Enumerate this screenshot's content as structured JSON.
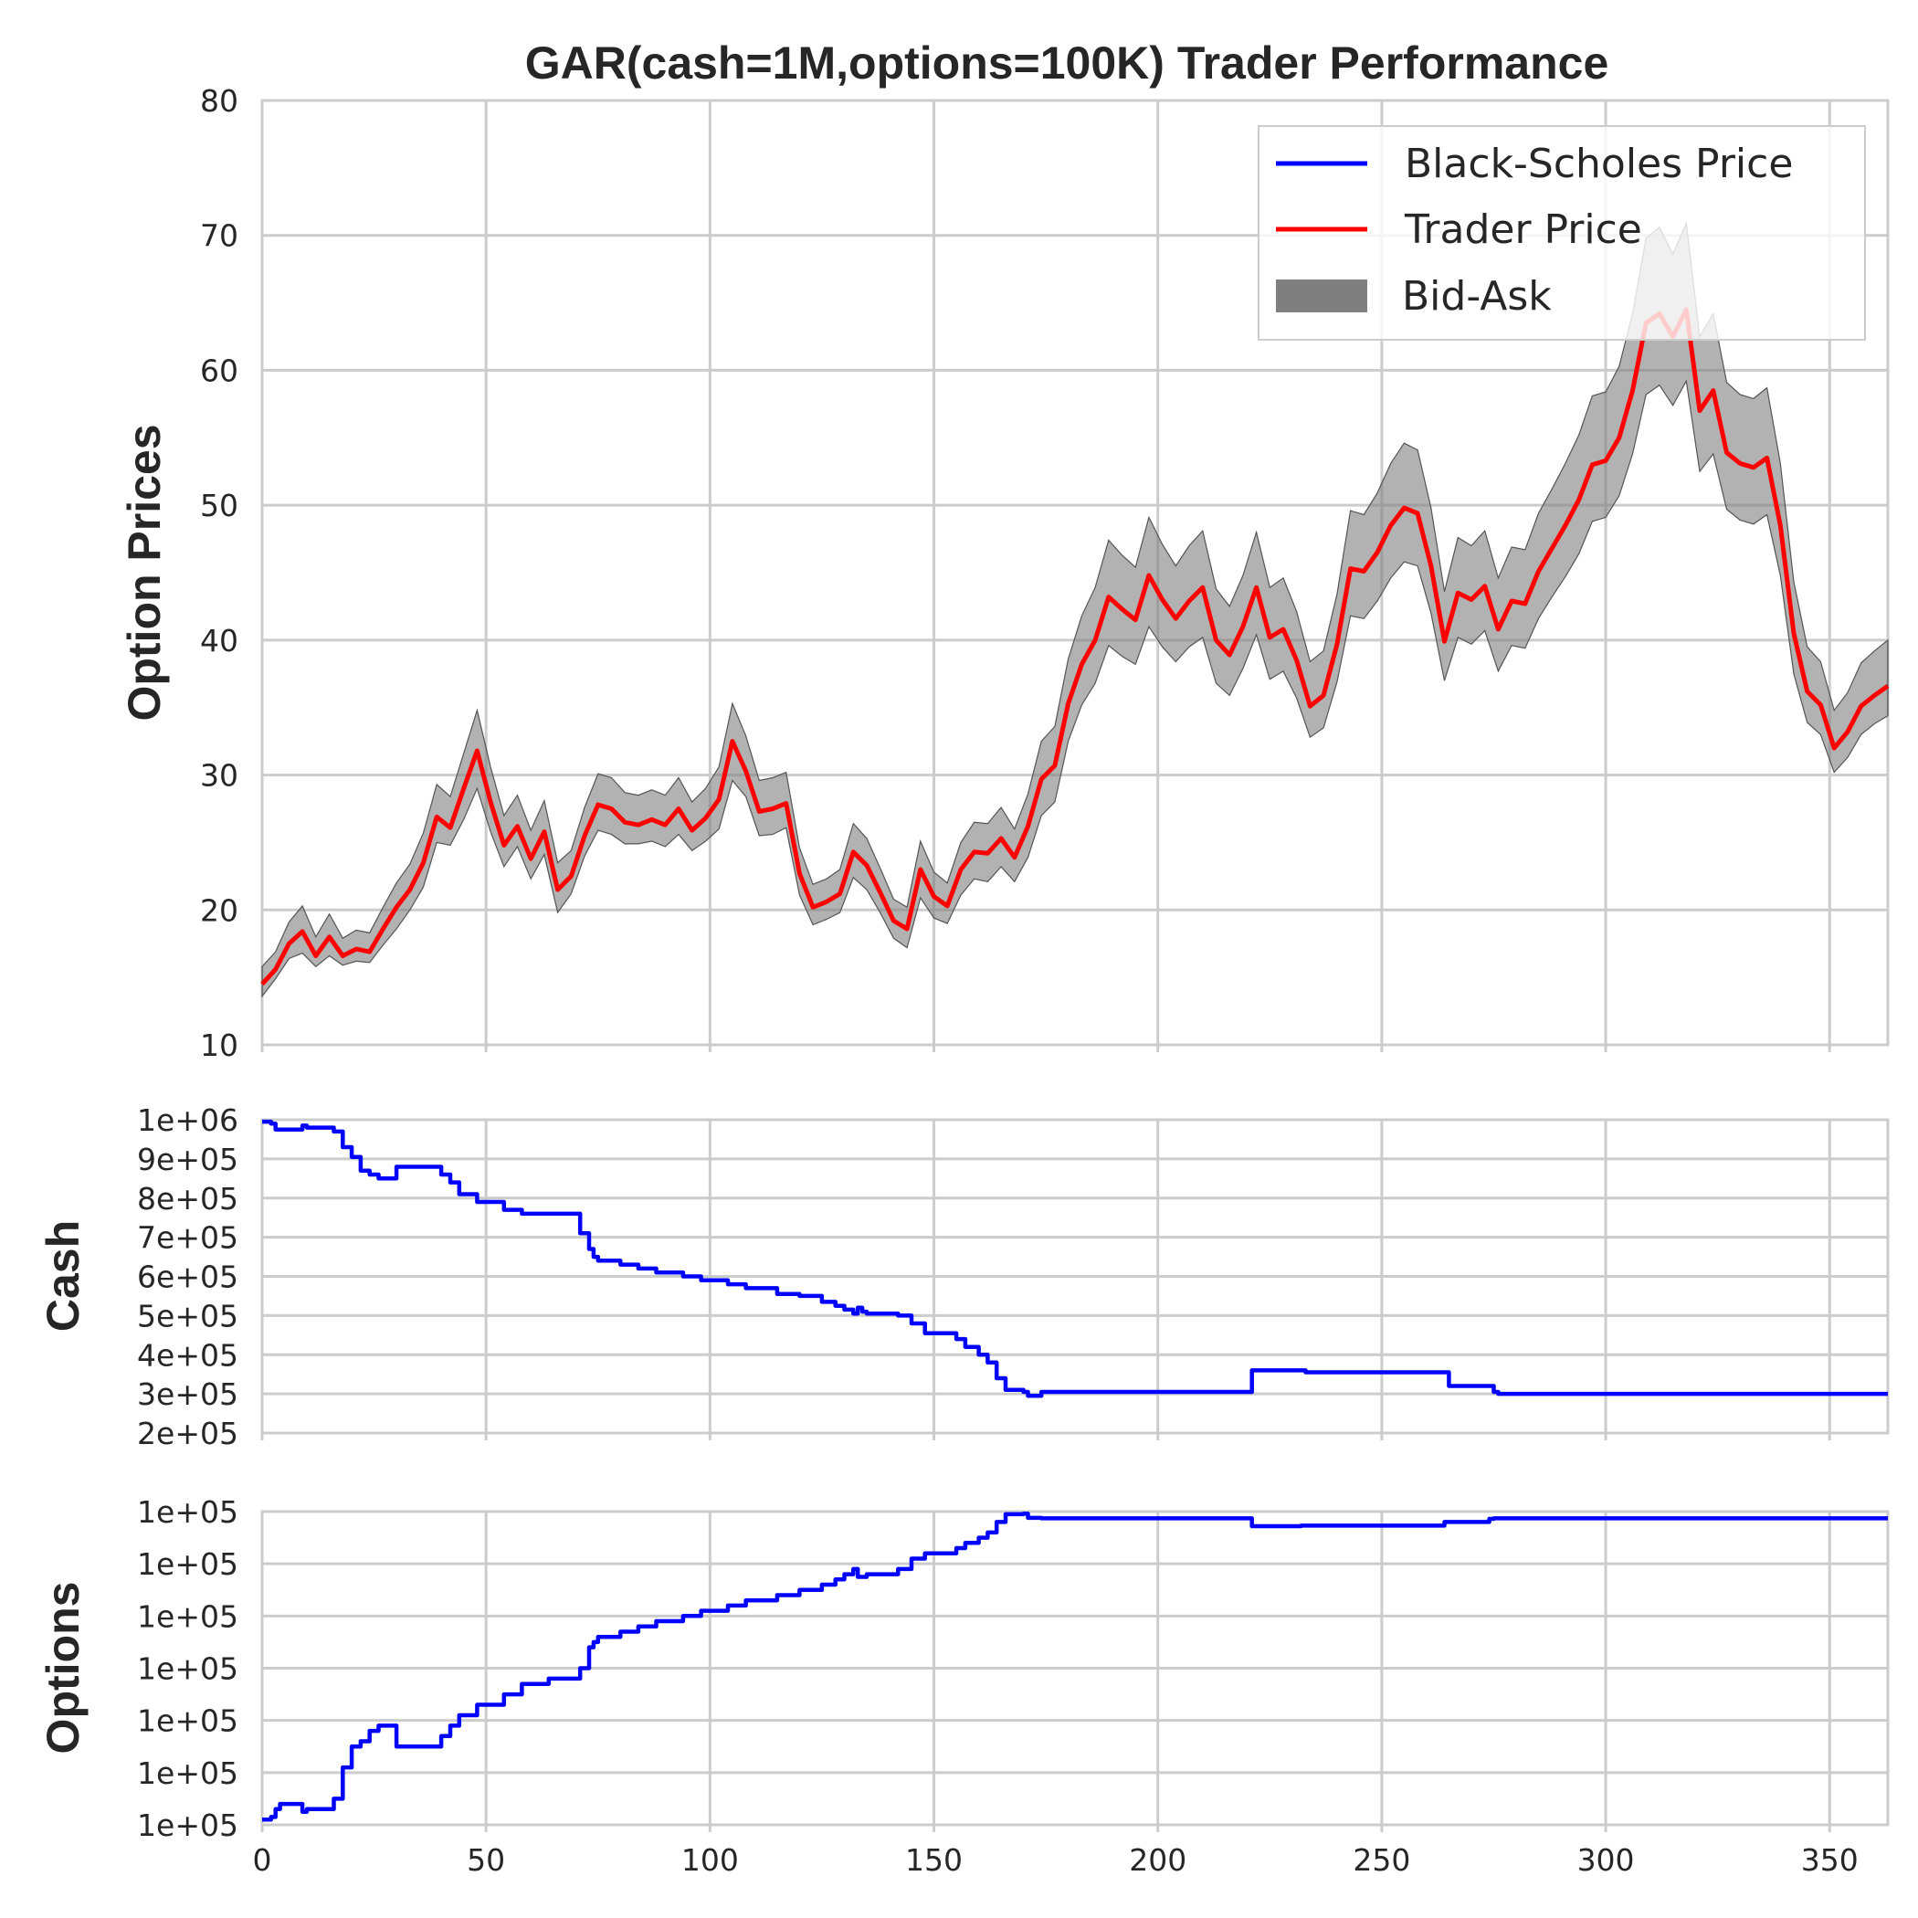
{
  "title": "GAR(cash=1M,options=100K) Trader Performance",
  "colors": {
    "black_scholes": "#0000ff",
    "trader": "#ff0000",
    "bid_ask_band": "#7f7f7f",
    "cash_line": "#0000ff",
    "options_line": "#0000ff",
    "grid": "#cccccc",
    "spine": "#cccccc"
  },
  "legend": {
    "placement": "top-right",
    "entries": [
      "Black-Scholes Price",
      "Trader Price",
      "Bid-Ask"
    ]
  },
  "chart_data": [
    {
      "type": "line",
      "panel": "option-prices",
      "ylabel": "Option Prices",
      "xlim": [
        0,
        363
      ],
      "ylim": [
        10,
        80
      ],
      "grid": true,
      "yticks": [
        "10",
        "20",
        "30",
        "40",
        "50",
        "60",
        "70",
        "80"
      ],
      "x": [
        0,
        3,
        6,
        9,
        12,
        15,
        18,
        21,
        24,
        27,
        30,
        33,
        36,
        39,
        42,
        45,
        48,
        51,
        54,
        57,
        60,
        63,
        66,
        69,
        72,
        75,
        78,
        81,
        84,
        87,
        90,
        93,
        96,
        99,
        102,
        105,
        108,
        111,
        114,
        117,
        120,
        123,
        126,
        129,
        132,
        135,
        138,
        141,
        144,
        147,
        150,
        153,
        156,
        159,
        162,
        165,
        168,
        171,
        174,
        177,
        180,
        183,
        186,
        189,
        192,
        195,
        198,
        201,
        204,
        207,
        210,
        213,
        216,
        219,
        222,
        225,
        228,
        231,
        234,
        237,
        240,
        243,
        246,
        249,
        252,
        255,
        258,
        261,
        264,
        267,
        270,
        273,
        276,
        279,
        282,
        285,
        288,
        291,
        294,
        297,
        300,
        303,
        306,
        309,
        312,
        315,
        318,
        321,
        324,
        327,
        330,
        333,
        336,
        339,
        342,
        345,
        348,
        351,
        354,
        357,
        360,
        363
      ],
      "series": [
        {
          "name": "Black-Scholes Price",
          "values": [
            14.5,
            15.6,
            17.5,
            18.4,
            16.6,
            18.0,
            16.6,
            17.1,
            16.9,
            18.6,
            20.2,
            21.5,
            23.5,
            26.9,
            26.1,
            29.0,
            31.8,
            28.0,
            24.8,
            26.2,
            23.8,
            25.8,
            21.5,
            22.5,
            25.5,
            27.8,
            27.5,
            26.5,
            26.3,
            26.7,
            26.3,
            27.5,
            25.9,
            26.8,
            28.2,
            32.5,
            30.3,
            27.3,
            27.5,
            27.9,
            22.7,
            20.2,
            20.6,
            21.2,
            24.3,
            23.3,
            21.3,
            19.2,
            18.6,
            23.0,
            21.0,
            20.3,
            23.0,
            24.3,
            24.2,
            25.3,
            23.9,
            26.2,
            29.7,
            30.7,
            35.3,
            38.2,
            40.0,
            43.2,
            42.3,
            41.5,
            44.8,
            43.0,
            41.6,
            42.9,
            43.9,
            40.0,
            38.9,
            41.0,
            43.9,
            40.2,
            40.8,
            38.5,
            35.1,
            35.9,
            39.7,
            45.3,
            45.1,
            46.5,
            48.5,
            49.8,
            49.4,
            45.5,
            39.9,
            43.5,
            43.0,
            44.0,
            40.8,
            42.9,
            42.7,
            45.1,
            46.8,
            48.5,
            50.4,
            53.0,
            53.3,
            55.0,
            58.5,
            63.5,
            64.2,
            62.5,
            64.5,
            57.0,
            58.5,
            53.9,
            53.1,
            52.8,
            53.5,
            48.5,
            40.5,
            36.2,
            35.2,
            32.0,
            33.2,
            35.1,
            35.9,
            36.6
          ],
          "stroke_visible": false
        },
        {
          "name": "Trader Price",
          "values": [
            14.5,
            15.6,
            17.5,
            18.4,
            16.6,
            18.0,
            16.6,
            17.1,
            16.9,
            18.6,
            20.2,
            21.5,
            23.5,
            26.9,
            26.1,
            29.0,
            31.8,
            28.0,
            24.8,
            26.2,
            23.8,
            25.8,
            21.5,
            22.5,
            25.5,
            27.8,
            27.5,
            26.5,
            26.3,
            26.7,
            26.3,
            27.5,
            25.9,
            26.8,
            28.2,
            32.5,
            30.3,
            27.3,
            27.5,
            27.9,
            22.7,
            20.2,
            20.6,
            21.2,
            24.3,
            23.3,
            21.3,
            19.2,
            18.6,
            23.0,
            21.0,
            20.3,
            23.0,
            24.3,
            24.2,
            25.3,
            23.9,
            26.2,
            29.7,
            30.7,
            35.3,
            38.2,
            40.0,
            43.2,
            42.3,
            41.5,
            44.8,
            43.0,
            41.6,
            42.9,
            43.9,
            40.0,
            38.9,
            41.0,
            43.9,
            40.2,
            40.8,
            38.5,
            35.1,
            35.9,
            39.7,
            45.3,
            45.1,
            46.5,
            48.5,
            49.8,
            49.4,
            45.5,
            39.9,
            43.5,
            43.0,
            44.0,
            40.8,
            42.9,
            42.7,
            45.1,
            46.8,
            48.5,
            50.4,
            53.0,
            53.3,
            55.0,
            58.5,
            63.5,
            64.2,
            62.5,
            64.5,
            57.0,
            58.5,
            53.9,
            53.1,
            52.8,
            53.5,
            48.5,
            40.5,
            36.2,
            35.2,
            32.0,
            33.2,
            35.1,
            35.9,
            36.6
          ]
        }
      ],
      "band": {
        "name": "Bid-Ask",
        "lower": [
          13.6,
          14.9,
          16.4,
          16.8,
          15.8,
          16.6,
          15.9,
          16.2,
          16.1,
          17.4,
          18.6,
          20.0,
          21.7,
          25.0,
          24.8,
          26.7,
          29.0,
          25.8,
          23.2,
          24.7,
          22.3,
          24.1,
          19.8,
          21.2,
          24.0,
          25.9,
          25.6,
          24.9,
          24.9,
          25.1,
          24.7,
          25.6,
          24.4,
          25.1,
          26.0,
          29.6,
          28.4,
          25.5,
          25.6,
          26.1,
          21.1,
          18.9,
          19.3,
          19.8,
          22.4,
          21.5,
          19.8,
          17.9,
          17.2,
          20.9,
          19.4,
          19.0,
          21.1,
          22.3,
          22.1,
          23.2,
          22.1,
          23.9,
          27.0,
          28.0,
          32.5,
          35.2,
          36.8,
          39.6,
          38.8,
          38.2,
          41.0,
          39.5,
          38.4,
          39.5,
          40.2,
          36.8,
          35.9,
          37.9,
          40.4,
          37.1,
          37.7,
          35.7,
          32.8,
          33.5,
          36.9,
          41.8,
          41.6,
          42.9,
          44.6,
          45.8,
          45.5,
          42.0,
          37.0,
          40.2,
          39.7,
          40.7,
          37.7,
          39.6,
          39.4,
          41.6,
          43.2,
          44.7,
          46.4,
          48.8,
          49.1,
          50.7,
          53.8,
          58.2,
          58.9,
          57.4,
          59.2,
          52.5,
          53.8,
          49.7,
          48.9,
          48.6,
          49.3,
          44.8,
          37.5,
          33.9,
          33.0,
          30.2,
          31.3,
          33.0,
          33.8,
          34.4
        ],
        "upper": [
          15.8,
          16.9,
          19.1,
          20.3,
          18.0,
          19.7,
          17.9,
          18.5,
          18.3,
          20.2,
          22.0,
          23.4,
          25.7,
          29.3,
          28.4,
          31.6,
          34.8,
          30.6,
          27.0,
          28.5,
          25.9,
          28.1,
          23.5,
          24.4,
          27.6,
          30.1,
          29.8,
          28.7,
          28.5,
          28.9,
          28.5,
          29.8,
          28.0,
          29.0,
          30.6,
          35.3,
          32.9,
          29.6,
          29.8,
          30.2,
          24.6,
          21.9,
          22.3,
          23.0,
          26.4,
          25.3,
          23.1,
          20.8,
          20.2,
          25.1,
          22.8,
          22.0,
          25.0,
          26.5,
          26.4,
          27.6,
          26.0,
          28.6,
          32.5,
          33.6,
          38.6,
          41.8,
          43.9,
          47.4,
          46.3,
          45.4,
          49.1,
          47.1,
          45.5,
          47.0,
          48.1,
          43.8,
          42.5,
          44.8,
          48.0,
          43.9,
          44.6,
          42.1,
          38.4,
          39.2,
          43.4,
          49.6,
          49.3,
          50.9,
          53.1,
          54.6,
          54.1,
          49.8,
          43.6,
          47.6,
          47.0,
          48.1,
          44.6,
          46.9,
          46.7,
          49.4,
          51.2,
          53.1,
          55.2,
          58.1,
          58.4,
          60.3,
          64.2,
          69.8,
          70.6,
          68.6,
          70.9,
          62.5,
          64.2,
          59.1,
          58.2,
          57.9,
          58.7,
          53.1,
          44.3,
          39.5,
          38.4,
          34.8,
          36.1,
          38.3,
          39.2,
          40.0
        ]
      }
    },
    {
      "type": "line",
      "panel": "cash",
      "ylabel": "Cash",
      "xlim": [
        0,
        363
      ],
      "ylim": [
        200000,
        1000000
      ],
      "grid": true,
      "yticks": [
        "2e+05",
        "3e+05",
        "4e+05",
        "5e+05",
        "6e+05",
        "7e+05",
        "8e+05",
        "9e+05",
        "1e+06"
      ],
      "x": [
        0,
        2,
        3,
        8,
        9,
        10,
        15,
        16,
        18,
        20,
        22,
        24,
        26,
        28,
        30,
        37,
        40,
        42,
        44,
        48,
        54,
        58,
        64,
        71,
        73,
        74,
        75,
        80,
        84,
        88,
        94,
        98,
        104,
        108,
        115,
        120,
        125,
        128,
        130,
        132,
        133,
        134,
        135,
        142,
        145,
        148,
        155,
        157,
        160,
        162,
        164,
        166,
        170,
        171,
        174,
        180,
        200,
        220,
        221,
        222,
        232,
        233,
        264,
        265,
        274,
        275,
        276,
        300,
        330,
        363
      ],
      "series": [
        {
          "name": "Cash",
          "values": [
            995000,
            990000,
            975000,
            975000,
            985000,
            980000,
            980000,
            970000,
            930000,
            905000,
            870000,
            860000,
            850000,
            850000,
            880000,
            880000,
            860000,
            840000,
            810000,
            790000,
            770000,
            760000,
            760000,
            710000,
            670000,
            650000,
            640000,
            630000,
            620000,
            610000,
            600000,
            590000,
            580000,
            570000,
            555000,
            550000,
            535000,
            525000,
            515000,
            505000,
            520000,
            510000,
            505000,
            500000,
            480000,
            455000,
            440000,
            420000,
            400000,
            380000,
            340000,
            310000,
            305000,
            295000,
            305000,
            305000,
            305000,
            305000,
            360000,
            360000,
            360000,
            355000,
            355000,
            320000,
            320000,
            305000,
            300000,
            300000,
            300000,
            300000
          ]
        }
      ]
    },
    {
      "type": "line",
      "panel": "options",
      "ylabel": "Options",
      "xlim": [
        0,
        363
      ],
      "ylim": [
        0,
        6
      ],
      "grid": true,
      "yticks": [
        "1e+05",
        "1e+05",
        "1e+05",
        "1e+05",
        "1e+05",
        "1e+05",
        "1e+05"
      ],
      "x": [
        0,
        2,
        3,
        4,
        8,
        9,
        10,
        15,
        16,
        18,
        20,
        22,
        24,
        26,
        28,
        30,
        37,
        40,
        42,
        44,
        48,
        54,
        58,
        64,
        71,
        73,
        74,
        75,
        80,
        84,
        88,
        94,
        98,
        104,
        108,
        115,
        120,
        125,
        128,
        130,
        132,
        133,
        134,
        135,
        142,
        145,
        148,
        155,
        157,
        160,
        162,
        164,
        166,
        170,
        171,
        174,
        180,
        200,
        220,
        221,
        222,
        232,
        233,
        264,
        265,
        274,
        275,
        276,
        300,
        330,
        363
      ],
      "series": [
        {
          "name": "Options",
          "values": [
            0.1,
            0.15,
            0.3,
            0.4,
            0.4,
            0.25,
            0.3,
            0.3,
            0.5,
            1.1,
            1.5,
            1.6,
            1.8,
            1.9,
            1.9,
            1.5,
            1.5,
            1.7,
            1.9,
            2.1,
            2.3,
            2.5,
            2.7,
            2.8,
            3.0,
            3.4,
            3.5,
            3.6,
            3.7,
            3.8,
            3.9,
            4.0,
            4.1,
            4.2,
            4.3,
            4.4,
            4.5,
            4.6,
            4.7,
            4.8,
            4.9,
            4.75,
            4.75,
            4.8,
            4.9,
            5.1,
            5.2,
            5.3,
            5.4,
            5.5,
            5.6,
            5.8,
            5.95,
            5.96,
            5.88,
            5.87,
            5.87,
            5.87,
            5.87,
            5.72,
            5.72,
            5.73,
            5.73,
            5.8,
            5.8,
            5.86,
            5.87,
            5.87,
            5.87,
            5.87,
            5.87
          ]
        }
      ]
    }
  ],
  "xticks": [
    "0",
    "50",
    "100",
    "150",
    "200",
    "250",
    "300",
    "350"
  ]
}
